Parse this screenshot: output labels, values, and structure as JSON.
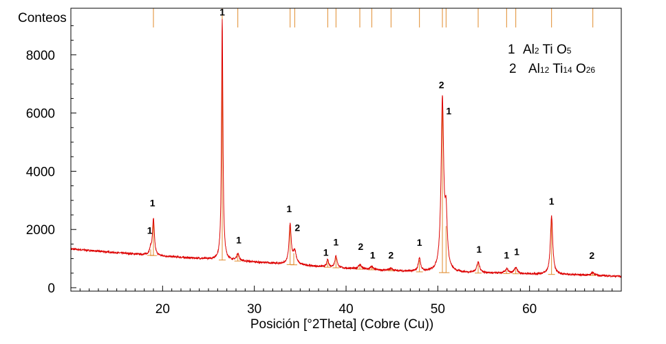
{
  "chart_data": {
    "type": "line",
    "ylabel": "Conteos",
    "xlabel": "Posición [°2Theta] (Cobre (Cu))",
    "xlim": [
      10,
      70
    ],
    "ylim": [
      0,
      9600
    ],
    "x_ticks": [
      "20",
      "30",
      "40",
      "50",
      "60"
    ],
    "y_ticks": [
      "0",
      "2000",
      "4000",
      "6000",
      "8000"
    ],
    "colors": {
      "pattern": "#dd0000",
      "reference": "#e08a2a",
      "axis": "#000000"
    },
    "legend": {
      "position": "top-right",
      "entries": [
        {
          "number": "1",
          "parts": [
            {
              "t": "Al"
            },
            {
              "t": "2",
              "sub": true
            },
            {
              "t": " Ti "
            },
            {
              "t": "O"
            },
            {
              "t": "5",
              "sub": true
            }
          ]
        },
        {
          "number": "2",
          "parts": [
            {
              "t": "Al"
            },
            {
              "t": "12",
              "sub": true
            },
            {
              "t": " Ti"
            },
            {
              "t": "14",
              "sub": true
            },
            {
              "t": " O"
            },
            {
              "t": "26",
              "sub": true
            }
          ]
        }
      ]
    },
    "background": [
      {
        "x": 10,
        "y": 1330
      },
      {
        "x": 15,
        "y": 1200
      },
      {
        "x": 20,
        "y": 1080
      },
      {
        "x": 25,
        "y": 980
      },
      {
        "x": 30,
        "y": 880
      },
      {
        "x": 35,
        "y": 770
      },
      {
        "x": 40,
        "y": 660
      },
      {
        "x": 45,
        "y": 580
      },
      {
        "x": 50,
        "y": 520
      },
      {
        "x": 55,
        "y": 500
      },
      {
        "x": 60,
        "y": 470
      },
      {
        "x": 65,
        "y": 440
      },
      {
        "x": 70,
        "y": 390
      }
    ],
    "peaks": [
      {
        "x": 18.7,
        "height": 200,
        "width": 0.15
      },
      {
        "x": 19.0,
        "height": 1250,
        "width": 0.12
      },
      {
        "x": 26.5,
        "height": 8250,
        "width": 0.09
      },
      {
        "x": 28.2,
        "height": 250,
        "width": 0.15
      },
      {
        "x": 33.9,
        "height": 1350,
        "width": 0.14
      },
      {
        "x": 34.4,
        "height": 450,
        "width": 0.2
      },
      {
        "x": 38.0,
        "height": 250,
        "width": 0.12
      },
      {
        "x": 38.9,
        "height": 400,
        "width": 0.15
      },
      {
        "x": 41.5,
        "height": 150,
        "width": 0.2
      },
      {
        "x": 42.8,
        "height": 120,
        "width": 0.15
      },
      {
        "x": 44.9,
        "height": 80,
        "width": 0.2
      },
      {
        "x": 48.0,
        "height": 450,
        "width": 0.15
      },
      {
        "x": 50.5,
        "height": 5850,
        "width": 0.17
      },
      {
        "x": 50.9,
        "height": 1700,
        "width": 0.15
      },
      {
        "x": 54.4,
        "height": 350,
        "width": 0.2
      },
      {
        "x": 57.5,
        "height": 150,
        "width": 0.2
      },
      {
        "x": 58.5,
        "height": 200,
        "width": 0.2
      },
      {
        "x": 62.4,
        "height": 2000,
        "width": 0.15
      },
      {
        "x": 66.9,
        "height": 100,
        "width": 0.2
      }
    ],
    "reference_lines": [
      {
        "x": 18.7,
        "intensity": 200
      },
      {
        "x": 19.0,
        "intensity": 1250
      },
      {
        "x": 26.5,
        "intensity": 8250
      },
      {
        "x": 28.2,
        "intensity": 250
      },
      {
        "x": 33.9,
        "intensity": 1300
      },
      {
        "x": 34.3,
        "intensity": 400
      },
      {
        "x": 38.0,
        "intensity": 200
      },
      {
        "x": 38.9,
        "intensity": 350
      },
      {
        "x": 41.5,
        "intensity": 120
      },
      {
        "x": 42.8,
        "intensity": 100
      },
      {
        "x": 44.9,
        "intensity": 60
      },
      {
        "x": 48.0,
        "intensity": 400
      },
      {
        "x": 50.5,
        "intensity": 5700
      },
      {
        "x": 50.9,
        "intensity": 1600
      },
      {
        "x": 54.4,
        "intensity": 300
      },
      {
        "x": 57.5,
        "intensity": 100
      },
      {
        "x": 58.5,
        "intensity": 150
      },
      {
        "x": 62.4,
        "intensity": 1900
      },
      {
        "x": 66.9,
        "intensity": 80
      }
    ],
    "top_markers": [
      19.0,
      26.5,
      28.2,
      33.9,
      34.4,
      38.0,
      38.9,
      41.5,
      42.8,
      44.9,
      48.0,
      50.5,
      50.9,
      54.4,
      57.5,
      58.5,
      62.4,
      66.9
    ],
    "peak_labels": [
      {
        "text": "1",
        "x": 18.6,
        "y": 1850
      },
      {
        "text": "1",
        "x": 18.9,
        "y": 2800
      },
      {
        "text": "1",
        "x": 26.5,
        "y": 9350
      },
      {
        "text": "1",
        "x": 28.3,
        "y": 1520
      },
      {
        "text": "1",
        "x": 33.8,
        "y": 2600
      },
      {
        "text": "2",
        "x": 34.7,
        "y": 1950
      },
      {
        "text": "1",
        "x": 37.8,
        "y": 1100
      },
      {
        "text": "1",
        "x": 38.9,
        "y": 1450
      },
      {
        "text": "2",
        "x": 41.6,
        "y": 1300
      },
      {
        "text": "1",
        "x": 42.9,
        "y": 1000
      },
      {
        "text": "2",
        "x": 44.9,
        "y": 1000
      },
      {
        "text": "1",
        "x": 48.0,
        "y": 1440
      },
      {
        "text": "2",
        "x": 50.4,
        "y": 6850
      },
      {
        "text": "1",
        "x": 51.2,
        "y": 5950
      },
      {
        "text": "1",
        "x": 54.5,
        "y": 1200
      },
      {
        "text": "1",
        "x": 57.5,
        "y": 1000
      },
      {
        "text": "1",
        "x": 58.6,
        "y": 1120
      },
      {
        "text": "1",
        "x": 62.4,
        "y": 2850
      },
      {
        "text": "2",
        "x": 66.8,
        "y": 990
      }
    ]
  }
}
